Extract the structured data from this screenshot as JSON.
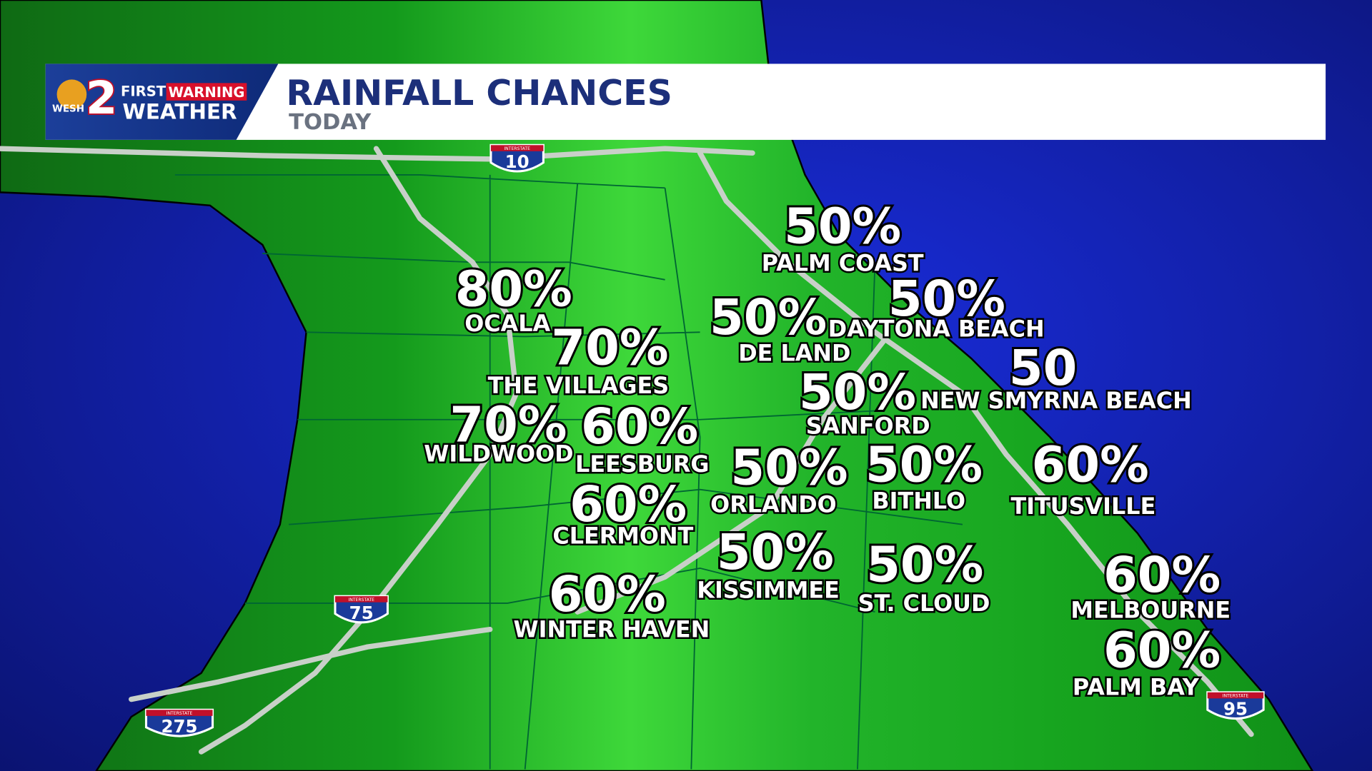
{
  "header": {
    "logo": {
      "station": "WESH",
      "channel": "2",
      "first": "FIRST",
      "warning": "WARNING",
      "weather": "WEATHER"
    },
    "title": "RAINFALL CHANCES",
    "subtitle": "TODAY"
  },
  "cities": [
    {
      "chance": "50%",
      "name": "PALM COAST"
    },
    {
      "chance": "50%",
      "name": "DAYTONA BEACH"
    },
    {
      "chance": "50%",
      "name": "DE LAND"
    },
    {
      "chance": "50",
      "name": "NEW SMYRNA BEACH"
    },
    {
      "chance": "80%",
      "name": "OCALA"
    },
    {
      "chance": "70%",
      "name": "THE VILLAGES"
    },
    {
      "chance": "70%",
      "name": "WILDWOOD"
    },
    {
      "chance": "60%",
      "name": "LEESBURG"
    },
    {
      "chance": "50%",
      "name": "SANFORD"
    },
    {
      "chance": "50%",
      "name": "ORLANDO"
    },
    {
      "chance": "50%",
      "name": "BITHLO"
    },
    {
      "chance": "60%",
      "name": "TITUSVILLE"
    },
    {
      "chance": "60%",
      "name": "CLERMONT"
    },
    {
      "chance": "50%",
      "name": "KISSIMMEE"
    },
    {
      "chance": "50%",
      "name": "ST. CLOUD"
    },
    {
      "chance": "60%",
      "name": "WINTER HAVEN"
    },
    {
      "chance": "60%",
      "name": "MELBOURNE"
    },
    {
      "chance": "60%",
      "name": "PALM BAY"
    }
  ],
  "shields": [
    {
      "header": "INTERSTATE",
      "number": "10"
    },
    {
      "header": "INTERSTATE",
      "number": "75"
    },
    {
      "header": "INTERSTATE",
      "number": "275"
    },
    {
      "header": "INTERSTATE",
      "number": "95"
    }
  ]
}
